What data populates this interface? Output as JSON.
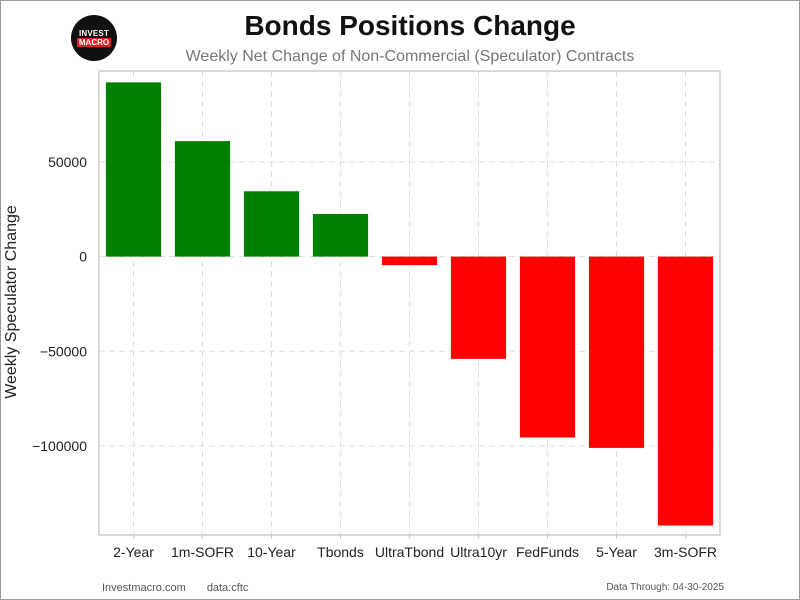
{
  "title": "Bonds Positions Change",
  "subtitle": "Weekly Net Change of Non-Commercial (Speculator) Contracts",
  "logo": {
    "line1": "INVEST",
    "line2": "MACRO"
  },
  "footer": {
    "site": "Investmacro.com",
    "source": "data:cftc",
    "data_through": "Data Through: 04-30-2025"
  },
  "colors": {
    "positive": "#008000",
    "negative": "#ff0000",
    "grid": "#dddddd",
    "axes": "#cccccc"
  },
  "chart_data": {
    "type": "bar",
    "title": "Bonds Positions Change",
    "subtitle": "Weekly Net Change of Non-Commercial (Speculator) Contracts",
    "xlabel": "",
    "ylabel": "Weekly Speculator Change",
    "categories": [
      "2-Year",
      "1m-SOFR",
      "10-Year",
      "Tbonds",
      "UltraTbond",
      "Ultra10yr",
      "FedFunds",
      "5-Year",
      "3m-SOFR"
    ],
    "values": [
      92000,
      61000,
      34500,
      22500,
      -4500,
      -54000,
      -95500,
      -101000,
      -142000
    ],
    "yticks": [
      -100000,
      -50000,
      0,
      50000
    ],
    "ytick_labels": [
      "−100000",
      "−50000",
      "0",
      "50000"
    ],
    "ylim": [
      -147000,
      98000
    ],
    "grid": true
  }
}
